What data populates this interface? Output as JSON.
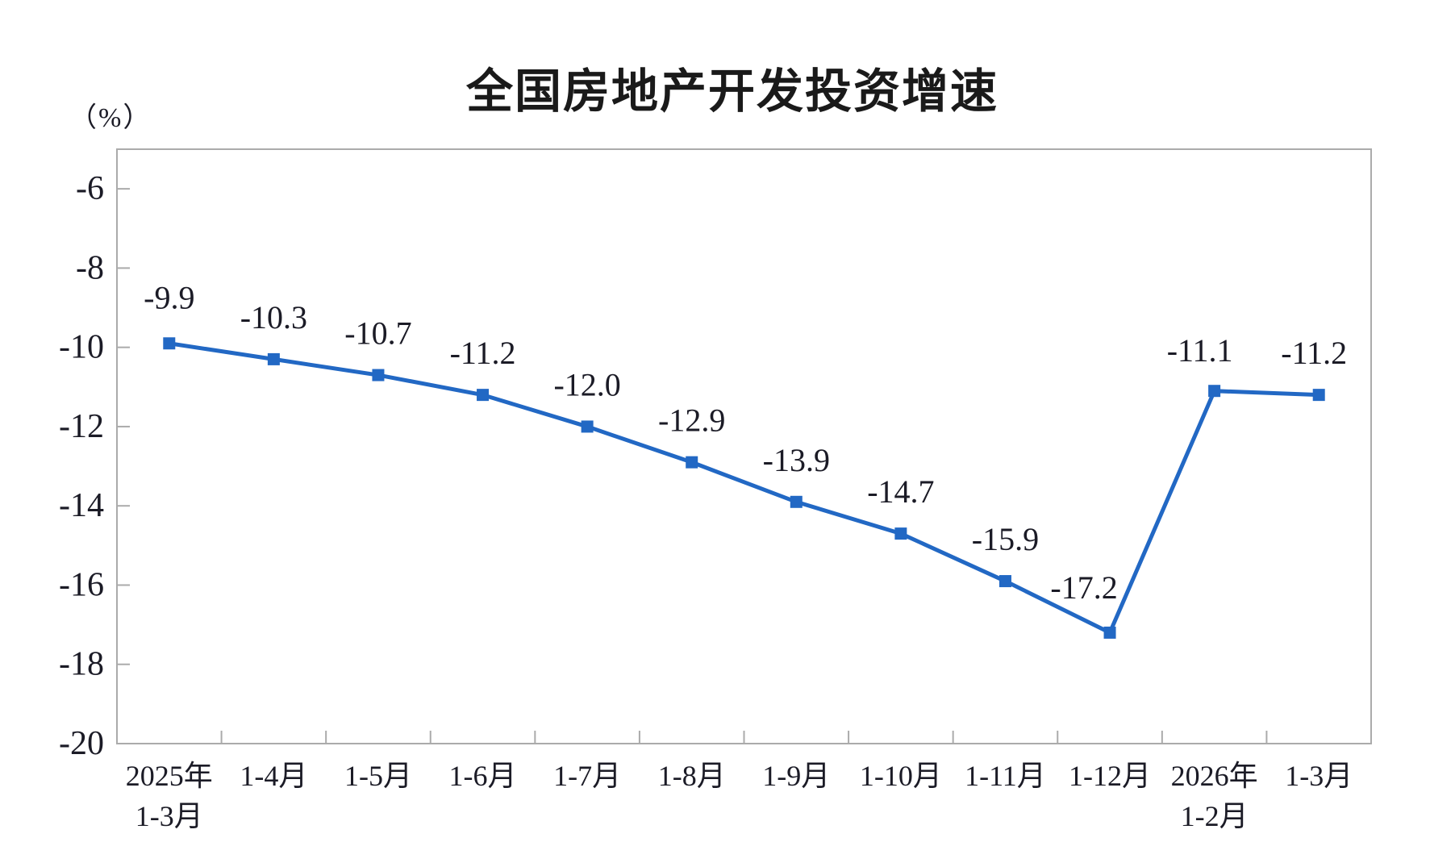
{
  "chart_data": {
    "type": "line",
    "title": "全国房地产开发投资增速",
    "unit_label": "（%）",
    "xlabel": "",
    "ylabel": "（%）",
    "legend": "none",
    "grid": false,
    "ylim": [
      -20,
      -5
    ],
    "y_ticks": [
      -6,
      -8,
      -10,
      -12,
      -14,
      -16,
      -18,
      -20
    ],
    "categories": [
      [
        "2025年",
        "1-3月"
      ],
      [
        "1-4月"
      ],
      [
        "1-5月"
      ],
      [
        "1-6月"
      ],
      [
        "1-7月"
      ],
      [
        "1-8月"
      ],
      [
        "1-9月"
      ],
      [
        "1-10月"
      ],
      [
        "1-11月"
      ],
      [
        "1-12月"
      ],
      [
        "2026年",
        "1-2月"
      ],
      [
        "1-3月"
      ]
    ],
    "series": [
      {
        "name": "全国房地产开发投资增速",
        "values": [
          -9.9,
          -10.3,
          -10.7,
          -11.2,
          -12.0,
          -12.9,
          -13.9,
          -14.7,
          -15.9,
          -17.2,
          -11.1,
          -11.2
        ],
        "data_labels": [
          "-9.9",
          "-10.3",
          "-10.7",
          "-11.2",
          "-12.0",
          "-12.9",
          "-13.9",
          "-14.7",
          "-15.9",
          "-17.2",
          "-11.1",
          "-11.2"
        ]
      }
    ],
    "colors": {
      "line": "#2268C4",
      "marker": "#2268C4",
      "axis": "#ABABAB",
      "tick_label": "#1b1b26",
      "data_label": "#1b1b26",
      "title": "#1a1a1a",
      "background": "#ffffff"
    },
    "marker_shape": "square"
  }
}
